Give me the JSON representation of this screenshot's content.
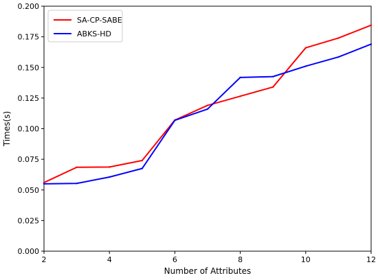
{
  "chart_data": {
    "type": "line",
    "title": "",
    "xlabel": "Number of Attributes",
    "ylabel": "Times(s)",
    "xlim": [
      2,
      12
    ],
    "ylim": [
      0.0,
      0.2
    ],
    "x_ticks": [
      "2",
      "4",
      "6",
      "8",
      "10",
      "12"
    ],
    "y_ticks": [
      "0.000",
      "0.025",
      "0.050",
      "0.075",
      "0.100",
      "0.125",
      "0.150",
      "0.175",
      "0.200"
    ],
    "grid": false,
    "legend_position": "top-left",
    "x": [
      2,
      3,
      4,
      5,
      6,
      7,
      8,
      9,
      10,
      11,
      12
    ],
    "series": [
      {
        "name": "SA-CP-SABE",
        "color": "#ff0000",
        "values": [
          0.056,
          0.0685,
          0.0687,
          0.074,
          0.107,
          0.119,
          0.1265,
          0.134,
          0.166,
          0.174,
          0.1845
        ]
      },
      {
        "name": "ABKS-HD",
        "color": "#0000ff",
        "values": [
          0.055,
          0.0553,
          0.0605,
          0.0675,
          0.1068,
          0.116,
          0.1418,
          0.1425,
          0.151,
          0.1585,
          0.169
        ]
      }
    ]
  }
}
